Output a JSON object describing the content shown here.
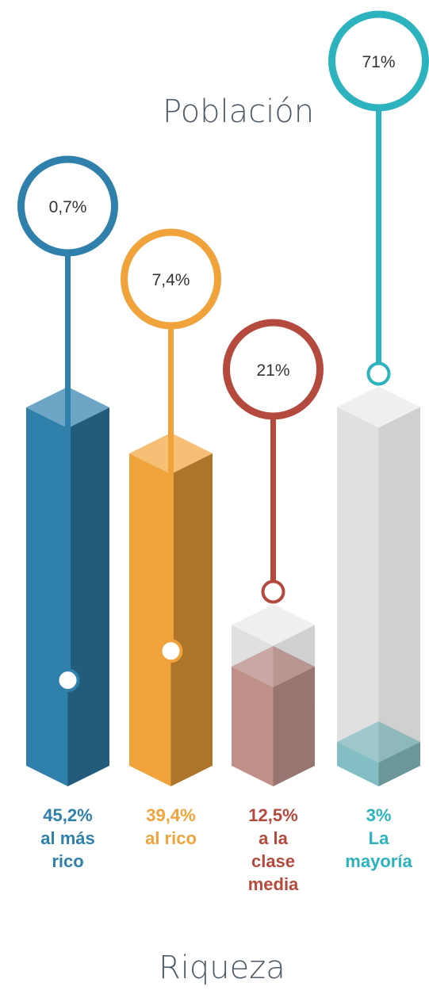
{
  "titles": {
    "top": "Población",
    "bottom": "Riqueza"
  },
  "chart_data": {
    "type": "bar",
    "title": "",
    "categories": [
      "al más rico",
      "al rico",
      "a la clase media",
      "La mayoría"
    ],
    "series": [
      {
        "name": "Población",
        "values": [
          0.7,
          7.4,
          21,
          71
        ],
        "unit": "%"
      },
      {
        "name": "Riqueza",
        "values": [
          45.2,
          39.4,
          12.5,
          3
        ],
        "unit": "%"
      }
    ],
    "population_labels": [
      "0,7%",
      "7,4%",
      "21%",
      "71%"
    ],
    "wealth_labels": [
      {
        "value": "45,2%",
        "lines": [
          "al más",
          "rico"
        ]
      },
      {
        "value": "39,4%",
        "lines": [
          "al rico"
        ]
      },
      {
        "value": "12,5%",
        "lines": [
          "a la",
          "clase",
          "media"
        ]
      },
      {
        "value": "3%",
        "lines": [
          "La",
          "mayoría"
        ]
      }
    ],
    "colors": [
      "#2f80aa",
      "#f0a33a",
      "#b44a3e",
      "#2db3bd"
    ]
  }
}
